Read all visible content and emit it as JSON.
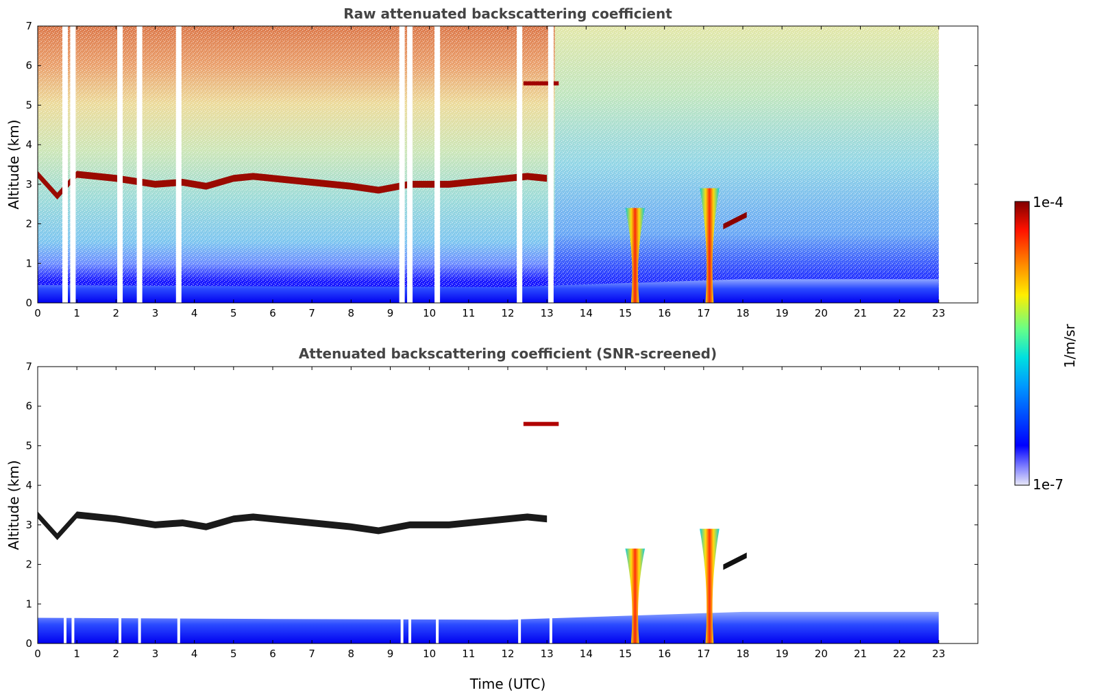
{
  "chart_data": [
    {
      "type": "heatmap",
      "title": "Raw attenuated backscattering coefficient",
      "xlabel": "",
      "ylabel": "Altitude (km)",
      "xlim": [
        0,
        24
      ],
      "ylim": [
        0,
        7
      ],
      "xticks": [
        "0",
        "1",
        "2",
        "3",
        "4",
        "5",
        "6",
        "7",
        "8",
        "9",
        "10",
        "11",
        "12",
        "13",
        "14",
        "15",
        "16",
        "17",
        "18",
        "19",
        "20",
        "21",
        "22",
        "23"
      ],
      "yticks": [
        "0",
        "1",
        "2",
        "3",
        "4",
        "5",
        "6",
        "7"
      ],
      "data_end_hour": 23,
      "layers": {
        "aerosol_layer": [
          [
            0,
            3.25
          ],
          [
            0.5,
            2.7
          ],
          [
            1,
            3.25
          ],
          [
            2,
            3.15
          ],
          [
            3,
            3.0
          ],
          [
            3.7,
            3.05
          ],
          [
            4.3,
            2.95
          ],
          [
            5,
            3.15
          ],
          [
            5.5,
            3.2
          ],
          [
            6,
            3.15
          ],
          [
            7,
            3.05
          ],
          [
            8,
            2.95
          ],
          [
            8.7,
            2.85
          ],
          [
            9.5,
            3.0
          ],
          [
            10.5,
            3.0
          ],
          [
            11.5,
            3.1
          ],
          [
            12.5,
            3.2
          ],
          [
            13,
            3.15
          ]
        ],
        "high_cloud": [
          [
            12.4,
            5.55
          ],
          [
            13.3,
            5.55
          ]
        ],
        "boundary_layer_top": [
          [
            0,
            0.45
          ],
          [
            6,
            0.42
          ],
          [
            12,
            0.4
          ],
          [
            18,
            0.6
          ],
          [
            23,
            0.6
          ]
        ],
        "cloud_events": [
          {
            "start": 15.0,
            "end": 15.5,
            "base": 0,
            "top": 2.4
          },
          {
            "start": 16.9,
            "end": 17.4,
            "base": 0,
            "top": 2.9
          },
          {
            "start": 17.5,
            "end": 18.1,
            "base": 2.0,
            "top": 2.3
          }
        ]
      },
      "data_gaps_hours": [
        0.7,
        0.9,
        2.1,
        2.6,
        3.6,
        9.3,
        9.5,
        10.2,
        12.3,
        13.1
      ]
    },
    {
      "type": "heatmap",
      "title": "Attenuated backscattering coefficient (SNR-screened)",
      "xlabel": "Time (UTC)",
      "ylabel": "Altitude (km)",
      "xlim": [
        0,
        24
      ],
      "ylim": [
        0,
        7
      ],
      "xticks": [
        "0",
        "1",
        "2",
        "3",
        "4",
        "5",
        "6",
        "7",
        "8",
        "9",
        "10",
        "11",
        "12",
        "13",
        "14",
        "15",
        "16",
        "17",
        "18",
        "19",
        "20",
        "21",
        "22",
        "23"
      ],
      "yticks": [
        "0",
        "1",
        "2",
        "3",
        "4",
        "5",
        "6",
        "7"
      ],
      "data_end_hour": 23
    }
  ],
  "colorbar": {
    "max_label": "1e-4",
    "min_label": "1e-7",
    "unit_label": "1/m/sr",
    "colormap": "jet",
    "colors": [
      "#ececf8",
      "#0000ff",
      "#00aaff",
      "#00e5e5",
      "#80ff80",
      "#ffff00",
      "#ff8000",
      "#ff0000",
      "#800000"
    ]
  }
}
